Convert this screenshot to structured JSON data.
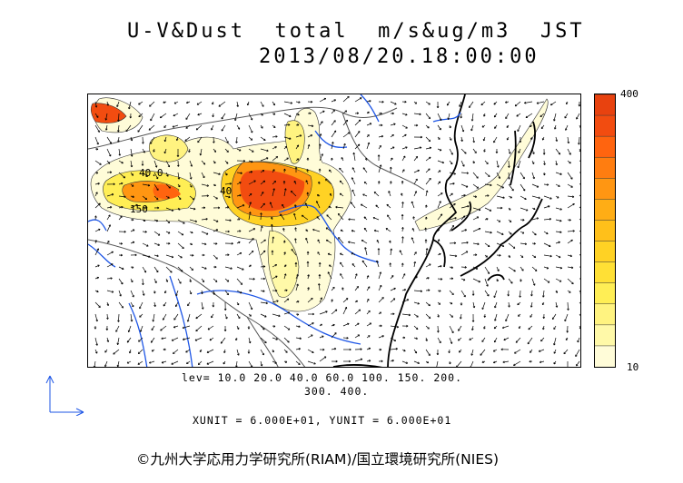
{
  "title": {
    "line1": "U-V&Dust  total  m/s&ug/m3  JST",
    "line2": "2013/08/20.18:00:00"
  },
  "legend": {
    "lev_line1": "lev= 10.0 20.0 40.0 60.0 100. 150. 200.",
    "lev_line2": "300. 400.",
    "colorbar_max": "400",
    "colorbar_min": "10",
    "colors": [
      "#fffcd8",
      "#fff9a8",
      "#fff380",
      "#ffee55",
      "#ffe035",
      "#ffd224",
      "#ffc01a",
      "#ffad15",
      "#ff9612",
      "#ff7d10",
      "#ff640f",
      "#f24c10",
      "#e8420f"
    ]
  },
  "units": "XUNIT = 6.000E+01, YUNIT = 6.000E+01",
  "contour_labels": [
    "40.0",
    "150",
    "40"
  ],
  "credit": "©九州大学応用力学研究所(RIAM)/国立環境研究所(NIES)",
  "colors": {
    "coast": "#000000",
    "rivers": "#1e56e6",
    "boundaries": "#555555"
  }
}
